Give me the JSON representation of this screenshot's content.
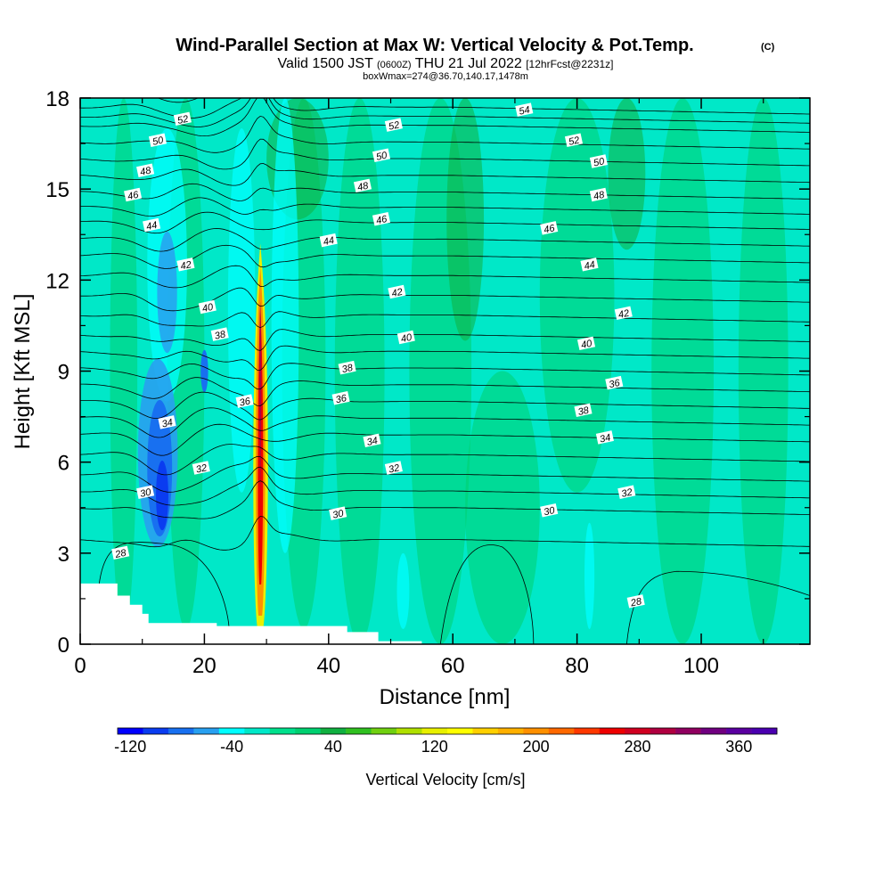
{
  "header": {
    "title": "Wind-Parallel Section at Max W: Vertical Velocity & Pot.Temp.",
    "title_mark": "(C)",
    "valid_prefix": "Valid 1500 JST",
    "valid_utc": "(0600Z)",
    "valid_date": "THU 21 Jul 2022",
    "forecast": "[12hrFcst@2231z]",
    "box_line": "boxWmax=274@36.70,140.17,1478m"
  },
  "chart_data": {
    "type": "heatmap",
    "xlabel": "Distance [nm]",
    "ylabel": "Height [Kft MSL]",
    "xlim": [
      0,
      117.5
    ],
    "ylim": [
      0,
      18
    ],
    "x_ticks": [
      0,
      20,
      40,
      60,
      80,
      100
    ],
    "y_ticks": [
      0,
      3,
      6,
      9,
      12,
      15,
      18
    ],
    "colorbar": {
      "label": "Vertical Velocity [cm/s]",
      "tick_labels": [
        "-120",
        "-40",
        "40",
        "120",
        "200",
        "280",
        "360"
      ],
      "tick_values": [
        -120,
        -40,
        40,
        120,
        200,
        280,
        360
      ],
      "range": [
        -130,
        390
      ],
      "colors": [
        "#0000ff",
        "#0a3cf0",
        "#1870f0",
        "#28a0f0",
        "#00ffff",
        "#00e8c8",
        "#00e08c",
        "#00d070",
        "#10b040",
        "#30c020",
        "#70d010",
        "#b0e000",
        "#e8f000",
        "#ffff00",
        "#ffd000",
        "#ffb000",
        "#ff9000",
        "#ff6800",
        "#ff3800",
        "#ee0000",
        "#d00020",
        "#b00040",
        "#900060",
        "#700080",
        "#5a00a0",
        "#4a00b0"
      ]
    },
    "velocity_features": [
      {
        "name": "updraft core",
        "x": 29,
        "z_bottom": 0.5,
        "z_top": 13.2,
        "max_cm_s": 274
      },
      {
        "name": "downdraft",
        "x": 13,
        "z_bottom": 3.5,
        "z_top": 8.5,
        "min_cm_s": -120
      },
      {
        "name": "weak downdraft aloft",
        "x": 14,
        "z_bottom": 9,
        "z_top": 14,
        "min_cm_s": -50
      }
    ],
    "theta_contours": {
      "levels": [
        28,
        30,
        32,
        34,
        36,
        38,
        40,
        42,
        44,
        46,
        48,
        50,
        52,
        54
      ],
      "labels": [
        {
          "text": "52",
          "x": 16.5,
          "z": 17.3
        },
        {
          "text": "50",
          "x": 12.5,
          "z": 16.6
        },
        {
          "text": "48",
          "x": 10.5,
          "z": 15.6
        },
        {
          "text": "46",
          "x": 8.5,
          "z": 14.8
        },
        {
          "text": "44",
          "x": 11.5,
          "z": 13.8
        },
        {
          "text": "42",
          "x": 17,
          "z": 12.5
        },
        {
          "text": "40",
          "x": 20.5,
          "z": 11.1
        },
        {
          "text": "38",
          "x": 22.5,
          "z": 10.2
        },
        {
          "text": "36",
          "x": 26.5,
          "z": 8.0
        },
        {
          "text": "34",
          "x": 14,
          "z": 7.3
        },
        {
          "text": "32",
          "x": 19.5,
          "z": 5.8
        },
        {
          "text": "30",
          "x": 10.5,
          "z": 5.0
        },
        {
          "text": "28",
          "x": 6.5,
          "z": 3.0
        },
        {
          "text": "54",
          "x": 71.5,
          "z": 17.6
        },
        {
          "text": "52",
          "x": 50.5,
          "z": 17.1
        },
        {
          "text": "52",
          "x": 79.5,
          "z": 16.6
        },
        {
          "text": "50",
          "x": 48.5,
          "z": 16.1
        },
        {
          "text": "50",
          "x": 83.5,
          "z": 15.9
        },
        {
          "text": "48",
          "x": 45.5,
          "z": 15.1
        },
        {
          "text": "48",
          "x": 83.5,
          "z": 14.8
        },
        {
          "text": "46",
          "x": 48.5,
          "z": 14.0
        },
        {
          "text": "46",
          "x": 75.5,
          "z": 13.7
        },
        {
          "text": "44",
          "x": 40,
          "z": 13.3
        },
        {
          "text": "44",
          "x": 82,
          "z": 12.5
        },
        {
          "text": "42",
          "x": 51,
          "z": 11.6
        },
        {
          "text": "42",
          "x": 87.5,
          "z": 10.9
        },
        {
          "text": "40",
          "x": 52.5,
          "z": 10.1
        },
        {
          "text": "40",
          "x": 81.5,
          "z": 9.9
        },
        {
          "text": "38",
          "x": 43,
          "z": 9.1
        },
        {
          "text": "38",
          "x": 81,
          "z": 7.7
        },
        {
          "text": "36",
          "x": 42,
          "z": 8.1
        },
        {
          "text": "36",
          "x": 86,
          "z": 8.6
        },
        {
          "text": "34",
          "x": 47,
          "z": 6.7
        },
        {
          "text": "34",
          "x": 84.5,
          "z": 6.8
        },
        {
          "text": "32",
          "x": 50.5,
          "z": 5.8
        },
        {
          "text": "32",
          "x": 88,
          "z": 5.0
        },
        {
          "text": "30",
          "x": 41.5,
          "z": 4.3
        },
        {
          "text": "30",
          "x": 75.5,
          "z": 4.4
        },
        {
          "text": "28",
          "x": 89.5,
          "z": 1.4
        }
      ]
    },
    "terrain": [
      [
        0,
        2.0
      ],
      [
        6,
        2.0
      ],
      [
        6,
        1.6
      ],
      [
        8,
        1.6
      ],
      [
        8,
        1.3
      ],
      [
        10,
        1.3
      ],
      [
        10,
        1.0
      ],
      [
        11,
        1.0
      ],
      [
        11,
        0.7
      ],
      [
        22,
        0.7
      ],
      [
        22,
        0.6
      ],
      [
        43,
        0.6
      ],
      [
        43,
        0.4
      ],
      [
        48,
        0.4
      ],
      [
        48,
        0.1
      ],
      [
        55,
        0.1
      ],
      [
        55,
        0.0
      ],
      [
        117.5,
        0.0
      ]
    ]
  }
}
